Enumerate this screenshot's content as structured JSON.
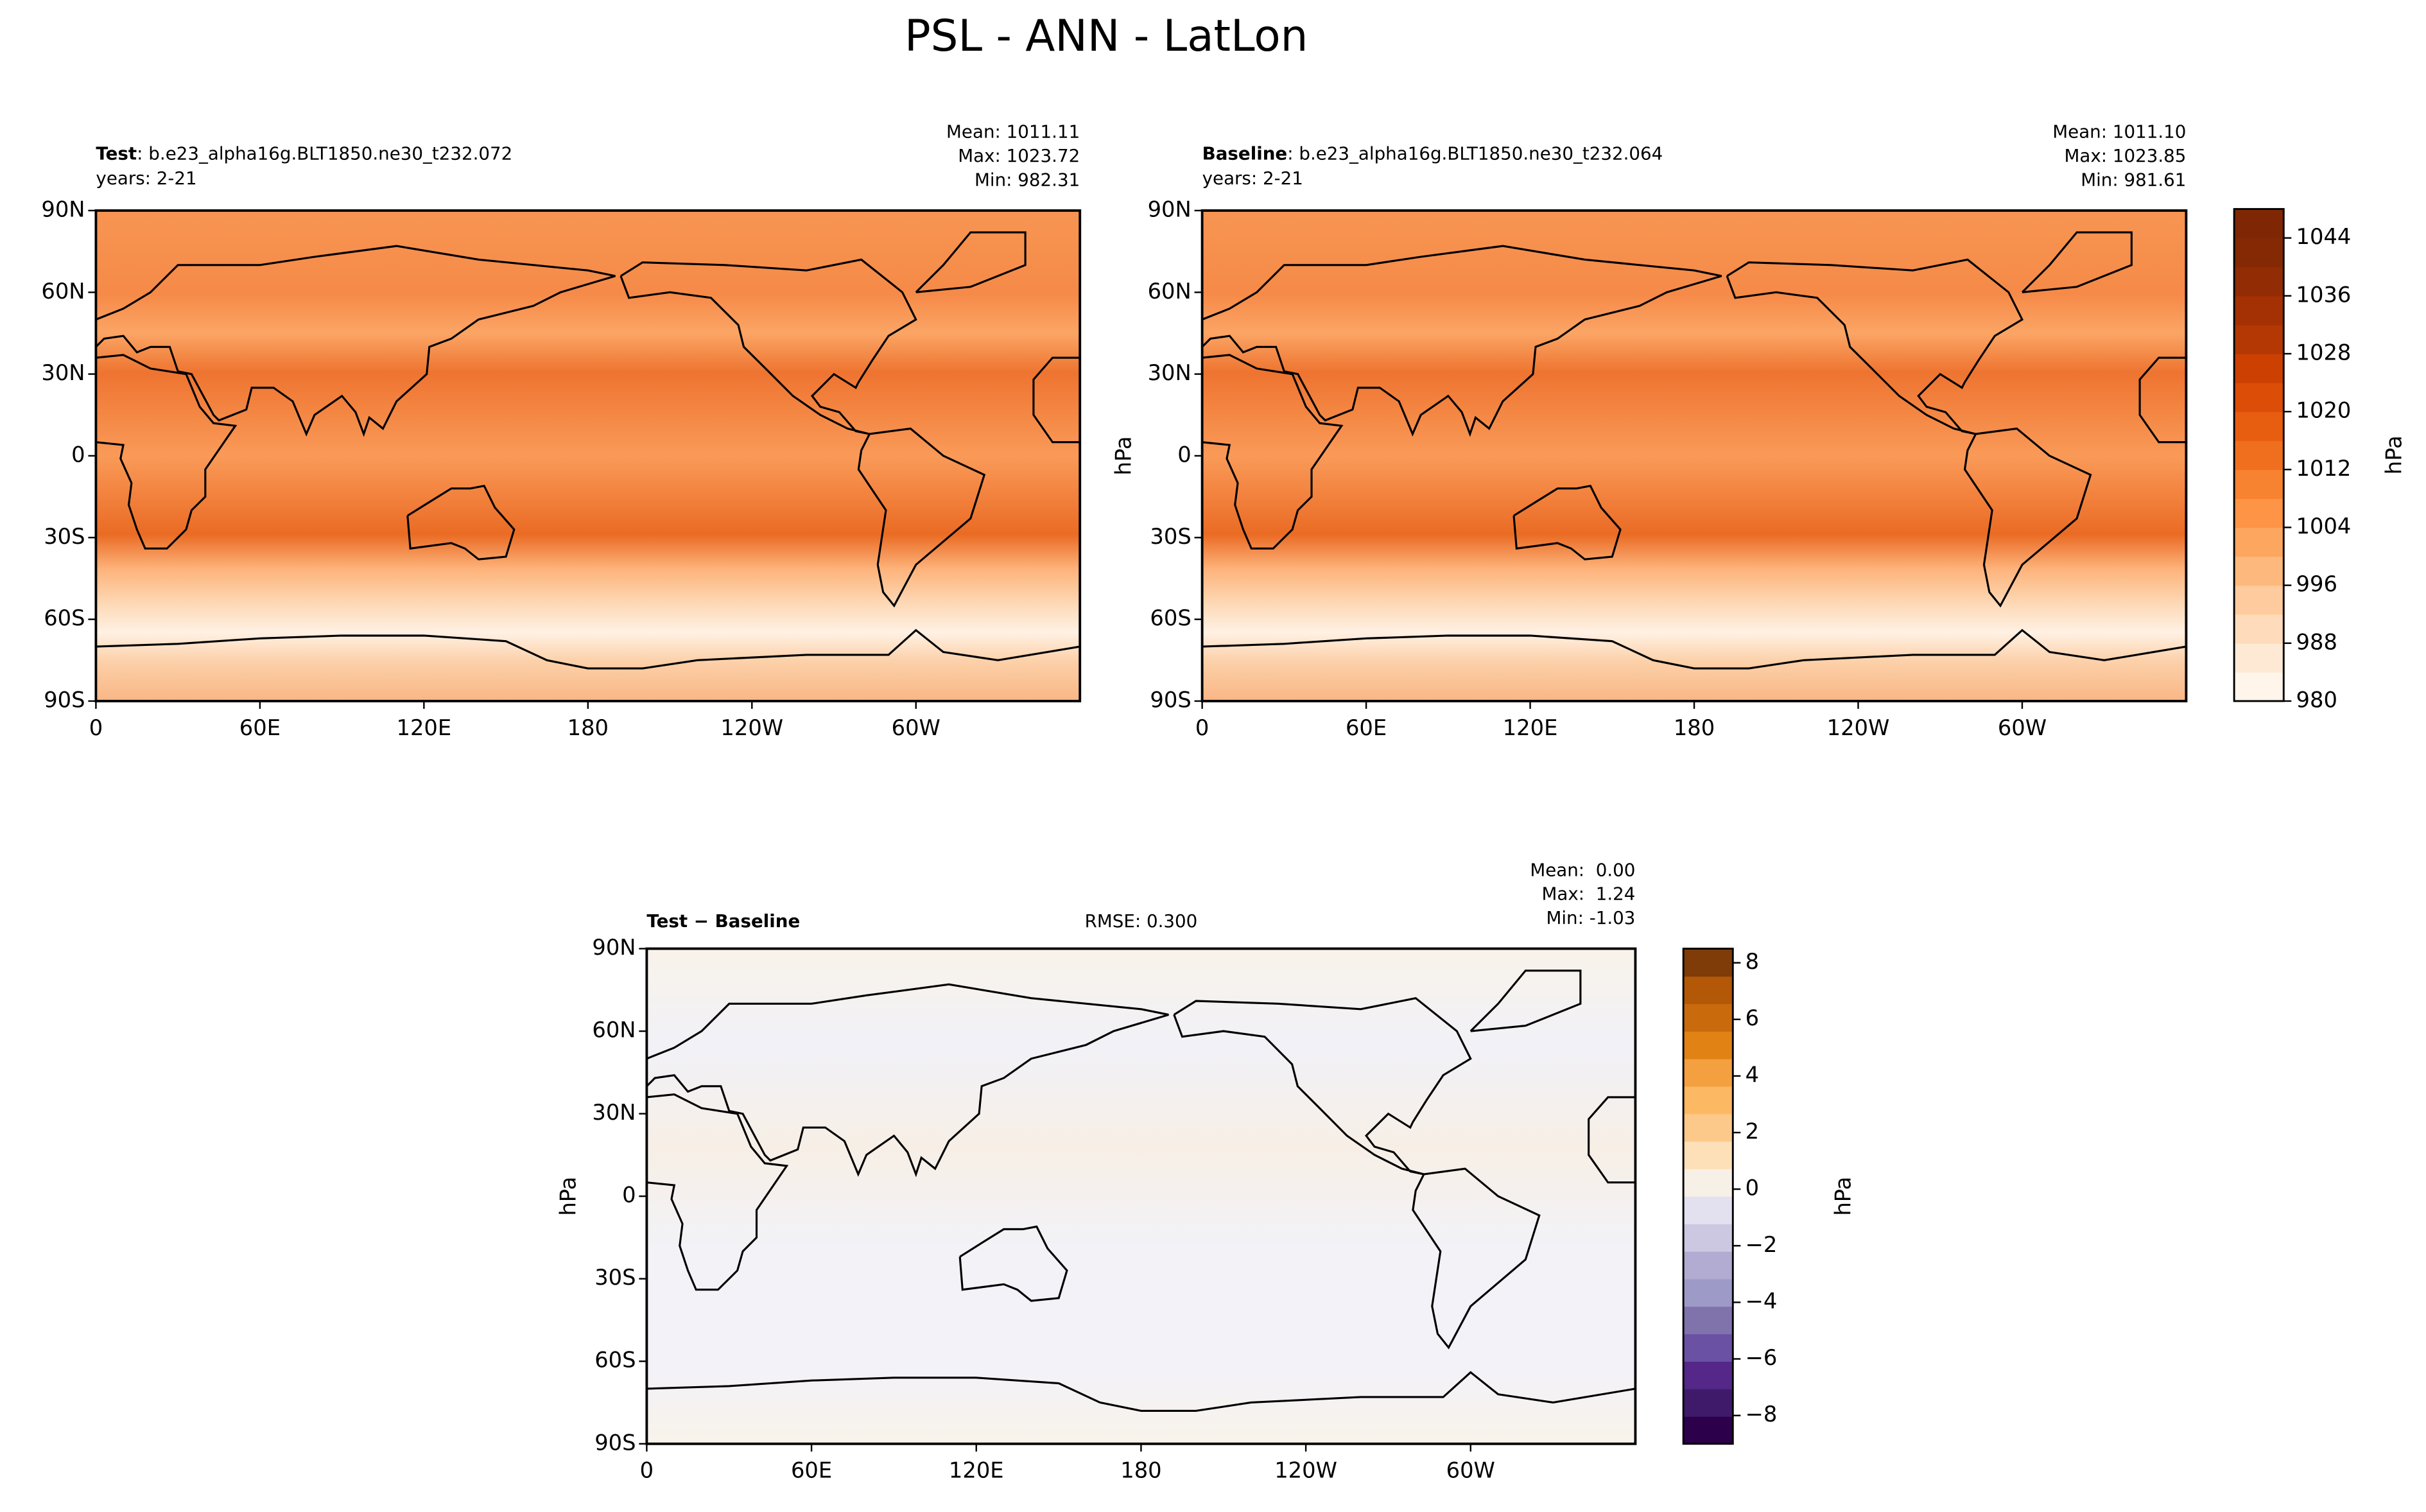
{
  "title": "PSL - ANN - LatLon",
  "chart_data": [
    {
      "type": "map",
      "label": "Test",
      "case": ": b.e23_alpha16g.BLT1850.ne30_t232.072",
      "years": "years: 2-21",
      "stats": [
        "Mean: 1011.11",
        "Max: 1023.72",
        "Min: 982.31"
      ],
      "xlim": [
        0,
        360
      ],
      "ylim": [
        -90,
        90
      ],
      "xticks": [
        0,
        {
          "value": 60,
          "label": "60E"
        },
        {
          "value": 120,
          "label": "120E"
        },
        180,
        {
          "value": 240,
          "label": "120W"
        },
        {
          "value": 300,
          "label": "60W"
        }
      ],
      "yticks": [
        {
          "value": -90,
          "label": "90S"
        },
        {
          "value": -60,
          "label": "60S"
        },
        {
          "value": -30,
          "label": "30S"
        },
        0,
        {
          "value": 30,
          "label": "30N"
        },
        {
          "value": 60,
          "label": "60N"
        },
        {
          "value": 90,
          "label": "90N"
        }
      ]
    },
    {
      "type": "map",
      "label": "Baseline",
      "case": ": b.e23_alpha16g.BLT1850.ne30_t232.064",
      "years": "years: 2-21",
      "stats": [
        "Mean: 1011.10",
        "Max: 1023.85",
        "Min: 981.61"
      ],
      "ylabel": "hPa",
      "xlim": [
        0,
        360
      ],
      "ylim": [
        -90,
        90
      ],
      "xticks": [
        0,
        {
          "value": 60,
          "label": "60E"
        },
        {
          "value": 120,
          "label": "120E"
        },
        180,
        {
          "value": 240,
          "label": "120W"
        },
        {
          "value": 300,
          "label": "60W"
        }
      ],
      "yticks": [
        {
          "value": -90,
          "label": "90S"
        },
        {
          "value": -60,
          "label": "60S"
        },
        {
          "value": -30,
          "label": "30S"
        },
        0,
        {
          "value": 30,
          "label": "30N"
        },
        {
          "value": 60,
          "label": "60N"
        },
        {
          "value": 90,
          "label": "90N"
        }
      ],
      "colorbar": {
        "label": "hPa",
        "lim": [
          980,
          1048
        ],
        "ticks": [
          980,
          988,
          996,
          1004,
          1012,
          1020,
          1028,
          1036,
          1044
        ],
        "colors": [
          "#fff5eb",
          "#fee9d4",
          "#fedcbb",
          "#fdcb9d",
          "#fdb97d",
          "#fda660",
          "#fd9446",
          "#f7822f",
          "#f06f1e",
          "#e85e10",
          "#dc4d07",
          "#cc4002",
          "#b33803",
          "#a33103",
          "#912c04",
          "#852904",
          "#7f2704"
        ]
      }
    },
    {
      "type": "map",
      "label": "Test − Baseline",
      "rmse": "RMSE: 0.300",
      "stats": [
        "Mean:  0.00",
        "Max:  1.24",
        "Min: -1.03"
      ],
      "ylabel": "hPa",
      "xlim": [
        0,
        360
      ],
      "ylim": [
        -90,
        90
      ],
      "xticks": [
        0,
        {
          "value": 60,
          "label": "60E"
        },
        {
          "value": 120,
          "label": "120E"
        },
        180,
        {
          "value": 240,
          "label": "120W"
        },
        {
          "value": 300,
          "label": "60W"
        }
      ],
      "yticks": [
        {
          "value": -90,
          "label": "90S"
        },
        {
          "value": -60,
          "label": "60S"
        },
        {
          "value": -30,
          "label": "30S"
        },
        0,
        {
          "value": 30,
          "label": "30N"
        },
        {
          "value": 60,
          "label": "60N"
        },
        {
          "value": 90,
          "label": "90N"
        }
      ],
      "colorbar": {
        "label": "hPa",
        "lim": [
          -9,
          8.5
        ],
        "ticks": [
          {
            "value": -8,
            "label": "−8"
          },
          {
            "value": -6,
            "label": "−6"
          },
          {
            "value": -4,
            "label": "−4"
          },
          {
            "value": -2,
            "label": "−2"
          },
          0,
          2,
          4,
          6,
          8
        ],
        "colors": [
          "#2d004b",
          "#3f1a6b",
          "#542788",
          "#6a51a3",
          "#8073ac",
          "#9e9ac8",
          "#b2abd2",
          "#cdc8e2",
          "#e3e0ef",
          "#f6f0e6",
          "#fde0b8",
          "#fdc98a",
          "#fdb863",
          "#f4a040",
          "#e08214",
          "#c96b0c",
          "#b35806",
          "#7f3b08"
        ]
      }
    }
  ]
}
